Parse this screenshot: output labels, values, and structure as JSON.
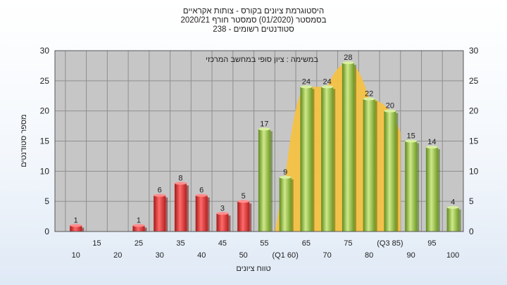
{
  "chart_data": {
    "type": "bar",
    "title": "היסטוגרמת ציונים בקורס - צותות אקראיים",
    "subtitle_lines": [
      "בסמסטר  (01/2020)  סמסטר חורף  2020/21",
      "סטודנטים רשומים - 238"
    ],
    "annotation": "במשימה : ציון סופי במחשב המרכזי",
    "xlabel": "טווח ציונים",
    "ylabel": "מספר סטודנטים",
    "ylim": [
      0,
      30
    ],
    "yticks": [
      0,
      5,
      10,
      15,
      20,
      25,
      30
    ],
    "grid": true,
    "categories": [
      10,
      15,
      20,
      25,
      30,
      35,
      40,
      45,
      50,
      55,
      60,
      65,
      70,
      75,
      80,
      85,
      90,
      95,
      100
    ],
    "x_tick_labels": [
      "10",
      "15",
      "20",
      "25",
      "30",
      "35",
      "40",
      "45",
      "50",
      "55",
      "(Q1 60)",
      "65",
      "70",
      "75",
      "80",
      "(Q3 85)",
      "90",
      "95",
      "100"
    ],
    "values": [
      1,
      0,
      0,
      1,
      6,
      8,
      6,
      3,
      5,
      17,
      9,
      24,
      24,
      28,
      22,
      20,
      15,
      14,
      4
    ],
    "data_labels": [
      "1",
      "",
      "",
      "1",
      "6",
      "8",
      "6",
      "3",
      "5",
      "17",
      "9",
      "24",
      "24",
      "28",
      "22",
      "20",
      "15",
      "14",
      "4"
    ],
    "colors": {
      "fail": "#d93a3a",
      "pass": "#8fba3a",
      "quartile_band": "#f6c244",
      "plot_background": "#c6c6c6",
      "grid": "#8e8e8e"
    },
    "fail_threshold": 55,
    "quartile_band_range": [
      60,
      85
    ]
  }
}
